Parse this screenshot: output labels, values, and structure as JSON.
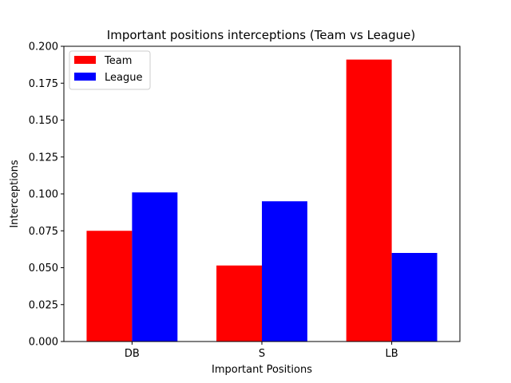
{
  "chart_data": {
    "type": "bar",
    "title": "Important positions interceptions (Team vs League)",
    "xlabel": "Important Positions",
    "ylabel": "Interceptions",
    "categories": [
      "DB",
      "S",
      "LB"
    ],
    "series": [
      {
        "name": "Team",
        "values": [
          0.075,
          0.0515,
          0.191
        ],
        "color": "#ff0000"
      },
      {
        "name": "League",
        "values": [
          0.101,
          0.095,
          0.06
        ],
        "color": "#0000ff"
      }
    ],
    "ylim": [
      0,
      0.2
    ],
    "yticks": [
      "0.000",
      "0.025",
      "0.050",
      "0.075",
      "0.100",
      "0.125",
      "0.150",
      "0.175",
      "0.200"
    ],
    "grid": false,
    "legend_position": "top-left"
  }
}
